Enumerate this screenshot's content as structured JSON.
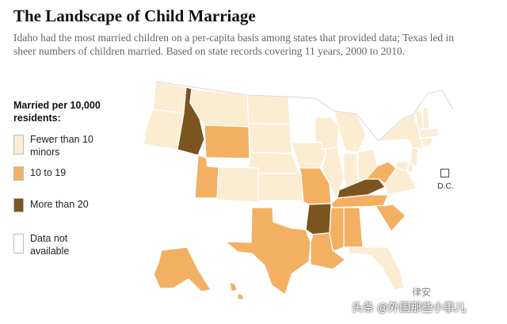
{
  "title": "The Landscape of Child Marriage",
  "subtitle": "Idaho had the most married children on a per-capita basis among states that provided data; Texas led in sheer numbers of children married. Based on state records covering 11 years, 2000 to 2010.",
  "legend": {
    "title": "Married per 10,000 residents:",
    "items": [
      {
        "key": "low",
        "label": "Fewer than 10 minors",
        "color": "#fbecd2"
      },
      {
        "key": "mid",
        "label": "10 to 19",
        "color": "#f4b062"
      },
      {
        "key": "high",
        "label": "More than 20",
        "color": "#7b5420"
      },
      {
        "key": "na",
        "label": "Data not available",
        "color": "#ffffff"
      }
    ]
  },
  "dc_label": "D.C.",
  "watermark": "头条 @外国那些小事儿",
  "logo_text": "律安"
}
